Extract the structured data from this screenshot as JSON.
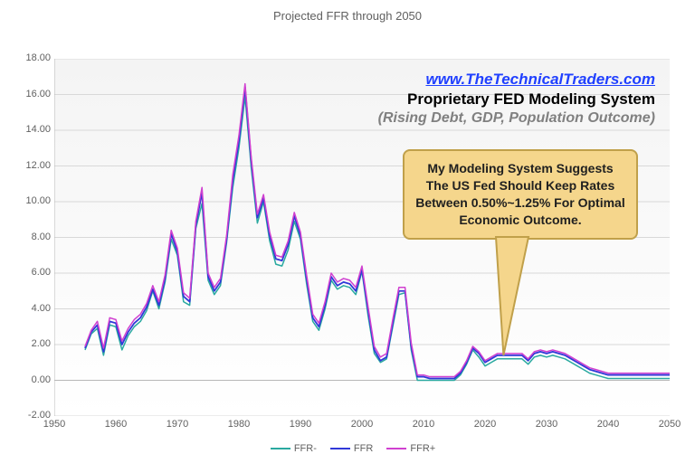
{
  "title": "Projected FFR through 2050",
  "chart": {
    "type": "line",
    "xlim": [
      1950,
      2050
    ],
    "ylim": [
      -2,
      18
    ],
    "ytick_step": 2,
    "xtick_step": 10,
    "yticks": [
      "-2.00",
      "0.00",
      "2.00",
      "4.00",
      "6.00",
      "8.00",
      "10.00",
      "12.00",
      "14.00",
      "16.00",
      "18.00"
    ],
    "xticks": [
      "1950",
      "1960",
      "1970",
      "1980",
      "1990",
      "2000",
      "2010",
      "2020",
      "2030",
      "2040",
      "2050"
    ],
    "background_gradient_top": "#f4f4f4",
    "background_gradient_bottom": "#ffffff",
    "gridline_color": "#d8d8d8",
    "axis_font_color": "#606060",
    "axis_font_size": 11,
    "series": [
      {
        "name": "FFR-",
        "color": "#2aa9a0",
        "width": 1.5,
        "data": [
          [
            1955,
            1.7
          ],
          [
            1956,
            2.6
          ],
          [
            1957,
            2.9
          ],
          [
            1958,
            1.4
          ],
          [
            1959,
            3.1
          ],
          [
            1960,
            3.0
          ],
          [
            1961,
            1.7
          ],
          [
            1962,
            2.5
          ],
          [
            1963,
            3.0
          ],
          [
            1964,
            3.3
          ],
          [
            1965,
            3.9
          ],
          [
            1966,
            5.0
          ],
          [
            1967,
            4.0
          ],
          [
            1968,
            5.5
          ],
          [
            1969,
            7.9
          ],
          [
            1970,
            7.0
          ],
          [
            1971,
            4.4
          ],
          [
            1972,
            4.2
          ],
          [
            1973,
            8.5
          ],
          [
            1974,
            9.9
          ],
          [
            1975,
            5.6
          ],
          [
            1976,
            4.8
          ],
          [
            1977,
            5.3
          ],
          [
            1978,
            7.7
          ],
          [
            1979,
            10.8
          ],
          [
            1980,
            13.0
          ],
          [
            1981,
            15.9
          ],
          [
            1982,
            11.9
          ],
          [
            1983,
            8.8
          ],
          [
            1984,
            10.0
          ],
          [
            1985,
            7.8
          ],
          [
            1986,
            6.5
          ],
          [
            1987,
            6.4
          ],
          [
            1988,
            7.3
          ],
          [
            1989,
            8.9
          ],
          [
            1990,
            7.9
          ],
          [
            1991,
            5.4
          ],
          [
            1992,
            3.3
          ],
          [
            1993,
            2.8
          ],
          [
            1994,
            4.0
          ],
          [
            1995,
            5.6
          ],
          [
            1996,
            5.1
          ],
          [
            1997,
            5.3
          ],
          [
            1998,
            5.2
          ],
          [
            1999,
            4.8
          ],
          [
            2000,
            6.1
          ],
          [
            2001,
            3.6
          ],
          [
            2002,
            1.5
          ],
          [
            2003,
            1.0
          ],
          [
            2004,
            1.2
          ],
          [
            2005,
            3.0
          ],
          [
            2006,
            4.8
          ],
          [
            2007,
            4.9
          ],
          [
            2008,
            1.7
          ],
          [
            2009,
            0.0
          ],
          [
            2010,
            0.0
          ],
          [
            2011,
            0.0
          ],
          [
            2012,
            0.0
          ],
          [
            2013,
            0.0
          ],
          [
            2014,
            0.0
          ],
          [
            2015,
            0.0
          ],
          [
            2016,
            0.3
          ],
          [
            2017,
            0.9
          ],
          [
            2018,
            1.7
          ],
          [
            2019,
            1.3
          ],
          [
            2020,
            0.8
          ],
          [
            2021,
            1.0
          ],
          [
            2022,
            1.2
          ],
          [
            2023,
            1.2
          ],
          [
            2024,
            1.2
          ],
          [
            2025,
            1.2
          ],
          [
            2026,
            1.2
          ],
          [
            2027,
            0.9
          ],
          [
            2028,
            1.3
          ],
          [
            2029,
            1.4
          ],
          [
            2030,
            1.3
          ],
          [
            2031,
            1.4
          ],
          [
            2032,
            1.3
          ],
          [
            2033,
            1.2
          ],
          [
            2034,
            1.0
          ],
          [
            2035,
            0.8
          ],
          [
            2036,
            0.6
          ],
          [
            2037,
            0.4
          ],
          [
            2038,
            0.3
          ],
          [
            2039,
            0.2
          ],
          [
            2040,
            0.1
          ],
          [
            2041,
            0.1
          ],
          [
            2045,
            0.1
          ],
          [
            2050,
            0.1
          ]
        ]
      },
      {
        "name": "FFR",
        "color": "#3038d8",
        "width": 1.8,
        "data": [
          [
            1955,
            1.8
          ],
          [
            1956,
            2.7
          ],
          [
            1957,
            3.1
          ],
          [
            1958,
            1.6
          ],
          [
            1959,
            3.3
          ],
          [
            1960,
            3.2
          ],
          [
            1961,
            2.0
          ],
          [
            1962,
            2.7
          ],
          [
            1963,
            3.2
          ],
          [
            1964,
            3.5
          ],
          [
            1965,
            4.1
          ],
          [
            1966,
            5.1
          ],
          [
            1967,
            4.2
          ],
          [
            1968,
            5.7
          ],
          [
            1969,
            8.2
          ],
          [
            1970,
            7.2
          ],
          [
            1971,
            4.7
          ],
          [
            1972,
            4.4
          ],
          [
            1973,
            8.7
          ],
          [
            1974,
            10.5
          ],
          [
            1975,
            5.8
          ],
          [
            1976,
            5.0
          ],
          [
            1977,
            5.5
          ],
          [
            1978,
            7.9
          ],
          [
            1979,
            11.2
          ],
          [
            1980,
            13.4
          ],
          [
            1981,
            16.4
          ],
          [
            1982,
            12.3
          ],
          [
            1983,
            9.1
          ],
          [
            1984,
            10.2
          ],
          [
            1985,
            8.1
          ],
          [
            1986,
            6.8
          ],
          [
            1987,
            6.7
          ],
          [
            1988,
            7.6
          ],
          [
            1989,
            9.2
          ],
          [
            1990,
            8.1
          ],
          [
            1991,
            5.7
          ],
          [
            1992,
            3.5
          ],
          [
            1993,
            3.0
          ],
          [
            1994,
            4.2
          ],
          [
            1995,
            5.8
          ],
          [
            1996,
            5.3
          ],
          [
            1997,
            5.5
          ],
          [
            1998,
            5.4
          ],
          [
            1999,
            5.0
          ],
          [
            2000,
            6.2
          ],
          [
            2001,
            3.9
          ],
          [
            2002,
            1.7
          ],
          [
            2003,
            1.1
          ],
          [
            2004,
            1.3
          ],
          [
            2005,
            3.2
          ],
          [
            2006,
            5.0
          ],
          [
            2007,
            5.0
          ],
          [
            2008,
            1.9
          ],
          [
            2009,
            0.2
          ],
          [
            2010,
            0.2
          ],
          [
            2011,
            0.1
          ],
          [
            2012,
            0.1
          ],
          [
            2013,
            0.1
          ],
          [
            2014,
            0.1
          ],
          [
            2015,
            0.1
          ],
          [
            2016,
            0.4
          ],
          [
            2017,
            1.0
          ],
          [
            2018,
            1.8
          ],
          [
            2019,
            1.5
          ],
          [
            2020,
            1.0
          ],
          [
            2021,
            1.2
          ],
          [
            2022,
            1.4
          ],
          [
            2023,
            1.4
          ],
          [
            2024,
            1.4
          ],
          [
            2025,
            1.4
          ],
          [
            2026,
            1.4
          ],
          [
            2027,
            1.1
          ],
          [
            2028,
            1.5
          ],
          [
            2029,
            1.6
          ],
          [
            2030,
            1.5
          ],
          [
            2031,
            1.6
          ],
          [
            2032,
            1.5
          ],
          [
            2033,
            1.4
          ],
          [
            2034,
            1.2
          ],
          [
            2035,
            1.0
          ],
          [
            2036,
            0.8
          ],
          [
            2037,
            0.6
          ],
          [
            2038,
            0.5
          ],
          [
            2039,
            0.4
          ],
          [
            2040,
            0.3
          ],
          [
            2041,
            0.3
          ],
          [
            2045,
            0.3
          ],
          [
            2050,
            0.3
          ]
        ]
      },
      {
        "name": "FFR+",
        "color": "#d040d0",
        "width": 1.5,
        "data": [
          [
            1955,
            1.9
          ],
          [
            1956,
            2.8
          ],
          [
            1957,
            3.3
          ],
          [
            1958,
            1.8
          ],
          [
            1959,
            3.5
          ],
          [
            1960,
            3.4
          ],
          [
            1961,
            2.2
          ],
          [
            1962,
            2.9
          ],
          [
            1963,
            3.4
          ],
          [
            1964,
            3.7
          ],
          [
            1965,
            4.3
          ],
          [
            1966,
            5.3
          ],
          [
            1967,
            4.4
          ],
          [
            1968,
            5.9
          ],
          [
            1969,
            8.4
          ],
          [
            1970,
            7.4
          ],
          [
            1971,
            4.9
          ],
          [
            1972,
            4.6
          ],
          [
            1973,
            8.9
          ],
          [
            1974,
            10.8
          ],
          [
            1975,
            6.0
          ],
          [
            1976,
            5.2
          ],
          [
            1977,
            5.7
          ],
          [
            1978,
            8.1
          ],
          [
            1979,
            11.5
          ],
          [
            1980,
            13.7
          ],
          [
            1981,
            16.6
          ],
          [
            1982,
            12.5
          ],
          [
            1983,
            9.3
          ],
          [
            1984,
            10.4
          ],
          [
            1985,
            8.3
          ],
          [
            1986,
            7.0
          ],
          [
            1987,
            6.9
          ],
          [
            1988,
            7.8
          ],
          [
            1989,
            9.4
          ],
          [
            1990,
            8.3
          ],
          [
            1991,
            5.9
          ],
          [
            1992,
            3.7
          ],
          [
            1993,
            3.2
          ],
          [
            1994,
            4.4
          ],
          [
            1995,
            6.0
          ],
          [
            1996,
            5.5
          ],
          [
            1997,
            5.7
          ],
          [
            1998,
            5.6
          ],
          [
            1999,
            5.2
          ],
          [
            2000,
            6.4
          ],
          [
            2001,
            4.1
          ],
          [
            2002,
            1.9
          ],
          [
            2003,
            1.3
          ],
          [
            2004,
            1.5
          ],
          [
            2005,
            3.4
          ],
          [
            2006,
            5.2
          ],
          [
            2007,
            5.2
          ],
          [
            2008,
            2.1
          ],
          [
            2009,
            0.3
          ],
          [
            2010,
            0.3
          ],
          [
            2011,
            0.2
          ],
          [
            2012,
            0.2
          ],
          [
            2013,
            0.2
          ],
          [
            2014,
            0.2
          ],
          [
            2015,
            0.2
          ],
          [
            2016,
            0.5
          ],
          [
            2017,
            1.1
          ],
          [
            2018,
            1.9
          ],
          [
            2019,
            1.6
          ],
          [
            2020,
            1.1
          ],
          [
            2021,
            1.3
          ],
          [
            2022,
            1.5
          ],
          [
            2023,
            1.5
          ],
          [
            2024,
            1.5
          ],
          [
            2025,
            1.5
          ],
          [
            2026,
            1.5
          ],
          [
            2027,
            1.2
          ],
          [
            2028,
            1.6
          ],
          [
            2029,
            1.7
          ],
          [
            2030,
            1.6
          ],
          [
            2031,
            1.7
          ],
          [
            2032,
            1.6
          ],
          [
            2033,
            1.5
          ],
          [
            2034,
            1.3
          ],
          [
            2035,
            1.1
          ],
          [
            2036,
            0.9
          ],
          [
            2037,
            0.7
          ],
          [
            2038,
            0.6
          ],
          [
            2039,
            0.5
          ],
          [
            2040,
            0.4
          ],
          [
            2041,
            0.4
          ],
          [
            2045,
            0.4
          ],
          [
            2050,
            0.4
          ]
        ]
      }
    ]
  },
  "overlay": {
    "link_text": "www.TheTechnicalTraders.com",
    "link_color": "#2040ff",
    "title_text": "Proprietary FED Modeling System",
    "sub_text": "(Rising Debt, GDP, Population Outcome)",
    "sub_color": "#808080"
  },
  "callout": {
    "text": "My Modeling System Suggests The US Fed Should Keep Rates Between 0.50%~1.25% For Optimal Economic Outcome.",
    "fill": "#f5d68c",
    "border": "#c0a04a",
    "target": [
      2023,
      1.4
    ]
  },
  "legend_items": [
    {
      "label": "FFR-",
      "color": "#2aa9a0"
    },
    {
      "label": "FFR",
      "color": "#3038d8"
    },
    {
      "label": "FFR+",
      "color": "#d040d0"
    }
  ]
}
